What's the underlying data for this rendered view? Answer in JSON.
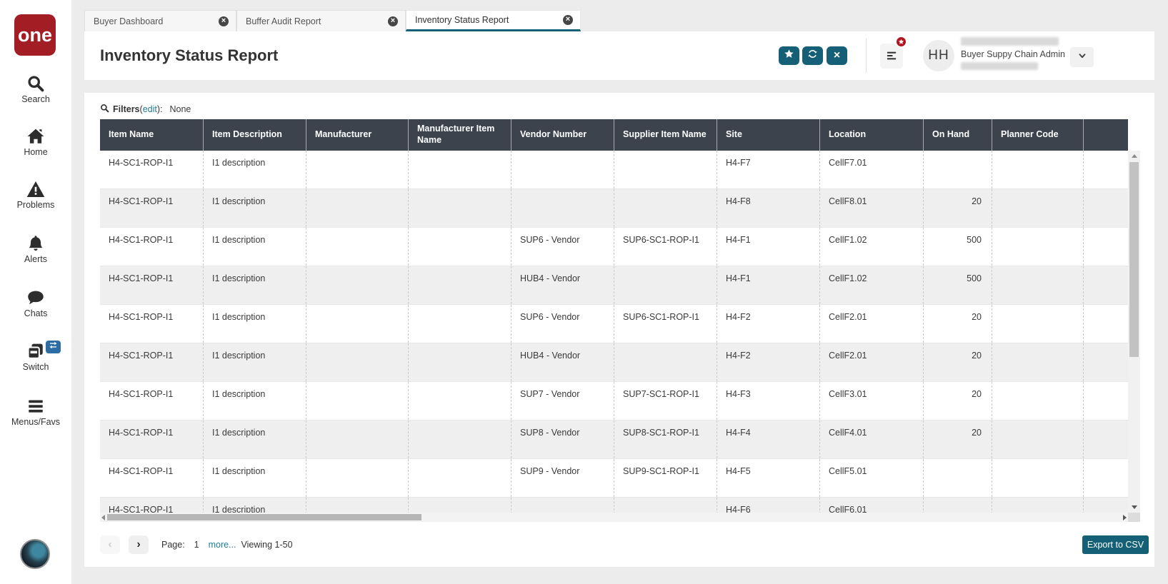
{
  "app": {
    "logo_text": "one"
  },
  "sidebar": {
    "items": [
      {
        "label": "Search"
      },
      {
        "label": "Home"
      },
      {
        "label": "Problems"
      },
      {
        "label": "Alerts"
      },
      {
        "label": "Chats"
      },
      {
        "label": "Switch"
      },
      {
        "label": "Menus/Favs"
      }
    ]
  },
  "tabs": [
    {
      "label": "Buyer Dashboard"
    },
    {
      "label": "Buffer Audit Report"
    },
    {
      "label": "Inventory Status Report"
    }
  ],
  "header": {
    "title": "Inventory Status Report",
    "user": {
      "initials": "HH",
      "role": "Buyer Suppy Chain Admin"
    }
  },
  "filters": {
    "label": "Filters",
    "paren_open": "(",
    "edit_link": "edit",
    "paren_close": "):",
    "value": "None"
  },
  "table": {
    "columns": [
      "Item Name",
      "Item Description",
      "Manufacturer",
      "Manufacturer Item Name",
      "Vendor Number",
      "Supplier Item Name",
      "Site",
      "Location",
      "On Hand",
      "Planner Code"
    ],
    "rows": [
      [
        "H4-SC1-ROP-I1",
        "I1 description",
        "",
        "",
        "",
        "",
        "H4-F7",
        "CellF7.01",
        "",
        ""
      ],
      [
        "H4-SC1-ROP-I1",
        "I1 description",
        "",
        "",
        "",
        "",
        "H4-F8",
        "CellF8.01",
        "20",
        ""
      ],
      [
        "H4-SC1-ROP-I1",
        "I1 description",
        "",
        "",
        "SUP6 - Vendor",
        "SUP6-SC1-ROP-I1",
        "H4-F1",
        "CellF1.02",
        "500",
        ""
      ],
      [
        "H4-SC1-ROP-I1",
        "I1 description",
        "",
        "",
        "HUB4 - Vendor",
        "",
        "H4-F1",
        "CellF1.02",
        "500",
        ""
      ],
      [
        "H4-SC1-ROP-I1",
        "I1 description",
        "",
        "",
        "SUP6 - Vendor",
        "SUP6-SC1-ROP-I1",
        "H4-F2",
        "CellF2.01",
        "20",
        ""
      ],
      [
        "H4-SC1-ROP-I1",
        "I1 description",
        "",
        "",
        "HUB4 - Vendor",
        "",
        "H4-F2",
        "CellF2.01",
        "20",
        ""
      ],
      [
        "H4-SC1-ROP-I1",
        "I1 description",
        "",
        "",
        "SUP7 - Vendor",
        "SUP7-SC1-ROP-I1",
        "H4-F3",
        "CellF3.01",
        "20",
        ""
      ],
      [
        "H4-SC1-ROP-I1",
        "I1 description",
        "",
        "",
        "SUP8 - Vendor",
        "SUP8-SC1-ROP-I1",
        "H4-F4",
        "CellF4.01",
        "20",
        ""
      ],
      [
        "H4-SC1-ROP-I1",
        "I1 description",
        "",
        "",
        "SUP9 - Vendor",
        "SUP9-SC1-ROP-I1",
        "H4-F5",
        "CellF5.01",
        "",
        ""
      ],
      [
        "H4-SC1-ROP-I1",
        "I1 description",
        "",
        "",
        "",
        "",
        "H4-F6",
        "CellF6.01",
        "",
        ""
      ]
    ]
  },
  "pagination": {
    "page_label": "Page:",
    "page_number": "1",
    "more_link": "more...",
    "viewing_text": "Viewing 1-50"
  },
  "export": {
    "label": "Export to CSV"
  },
  "icons": {
    "close": "×",
    "prev": "‹",
    "next": "›"
  },
  "colors": {
    "accent": "#156076",
    "link": "#1e7d95",
    "table_header_bg": "#3c434d",
    "logo_red": "#a21d24",
    "badge_red": "#b3131d",
    "switch_badge_blue": "#2e6da4"
  }
}
